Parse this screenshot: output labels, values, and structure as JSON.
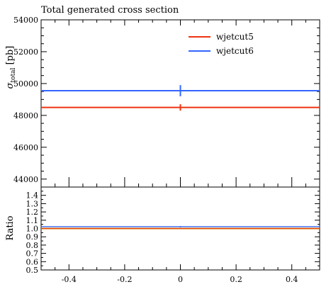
{
  "chart_data": [
    {
      "type": "line",
      "title": "Total generated cross section",
      "ylabel": "σ",
      "ylabel_sub": "total",
      "ylabel_unit": "[pb]",
      "xlim": [
        -0.5,
        0.5
      ],
      "ylim": [
        43500,
        54000
      ],
      "yticks": [
        44000,
        46000,
        48000,
        50000,
        52000,
        54000
      ],
      "legend_position": "top-right",
      "series": [
        {
          "name": "wjetcut5",
          "color": "#ee3311",
          "y": 48500,
          "error": 200,
          "x_center": 0
        },
        {
          "name": "wjetcut6",
          "color": "#3366ff",
          "y": 49550,
          "error": 350,
          "x_center": 0
        }
      ]
    },
    {
      "type": "line",
      "ylabel": "Ratio",
      "xlim": [
        -0.5,
        0.5
      ],
      "ylim": [
        0.5,
        1.5
      ],
      "yticks": [
        0.5,
        0.6,
        0.7,
        0.8,
        0.9,
        1.0,
        1.1,
        1.2,
        1.3,
        1.4
      ],
      "xticks": [
        -0.4,
        -0.2,
        0,
        0.2,
        0.4
      ],
      "xtick_labels": [
        "-0.4",
        "-0.2",
        "0",
        "0.2",
        "0.4"
      ],
      "reference_line": {
        "y": 1.0,
        "color": "#bbbb00"
      },
      "series": [
        {
          "name": "wjetcut5",
          "color": "#ee3311",
          "y": 1.0,
          "error": 0.004
        },
        {
          "name": "wjetcut6",
          "color": "#3366ff",
          "y": 1.022,
          "error": 0.008
        }
      ]
    }
  ]
}
